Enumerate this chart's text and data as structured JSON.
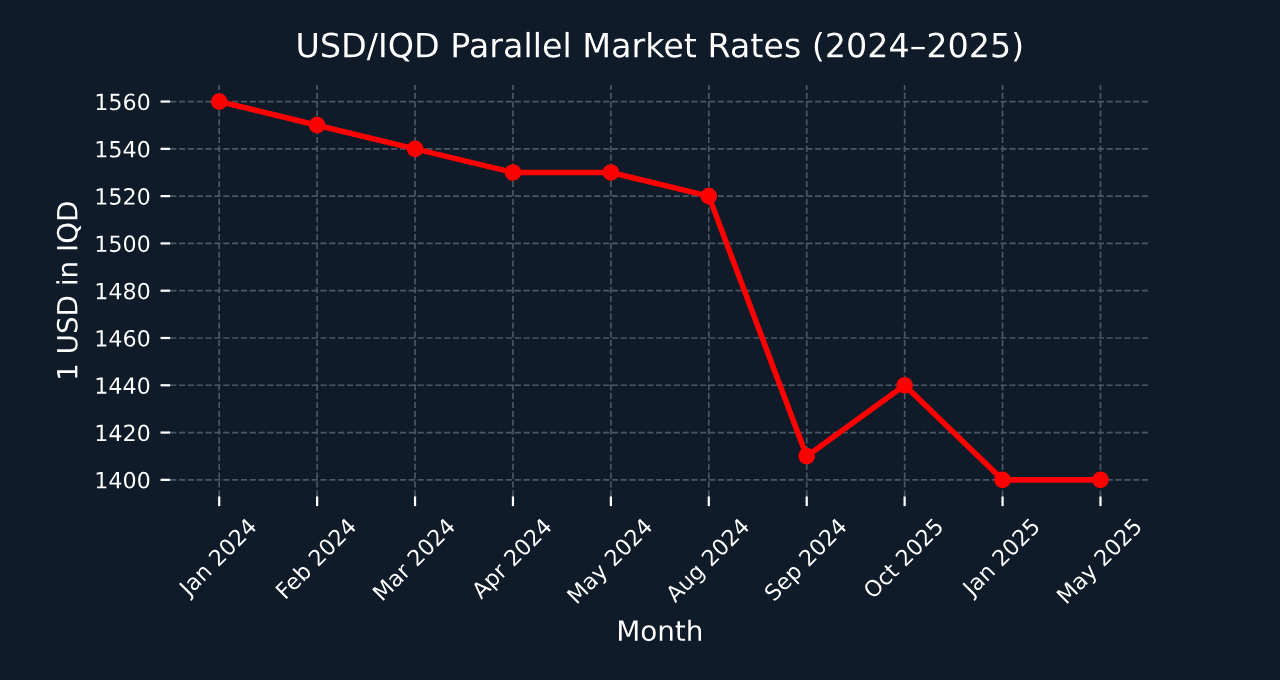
{
  "chart_data": {
    "type": "line",
    "title": "USD/IQD Parallel Market Rates (2024–2025)",
    "xlabel": "Month",
    "ylabel": "1 USD in IQD",
    "categories": [
      "Jan 2024",
      "Feb 2024",
      "Mar 2024",
      "Apr 2024",
      "May 2024",
      "Aug 2024",
      "Sep 2024",
      "Oct 2025",
      "Jan 2025",
      "May 2025"
    ],
    "series": [
      {
        "color": "#ff0000",
        "values": [
          1560,
          1550,
          1540,
          1530,
          1530,
          1520,
          1410,
          1440,
          1400,
          1400
        ]
      }
    ],
    "ylim": [
      1393,
      1567
    ],
    "yticks": [
      1400,
      1420,
      1440,
      1460,
      1480,
      1500,
      1520,
      1540,
      1560
    ],
    "grid": true,
    "marker": "circle",
    "line_style": "solid"
  }
}
